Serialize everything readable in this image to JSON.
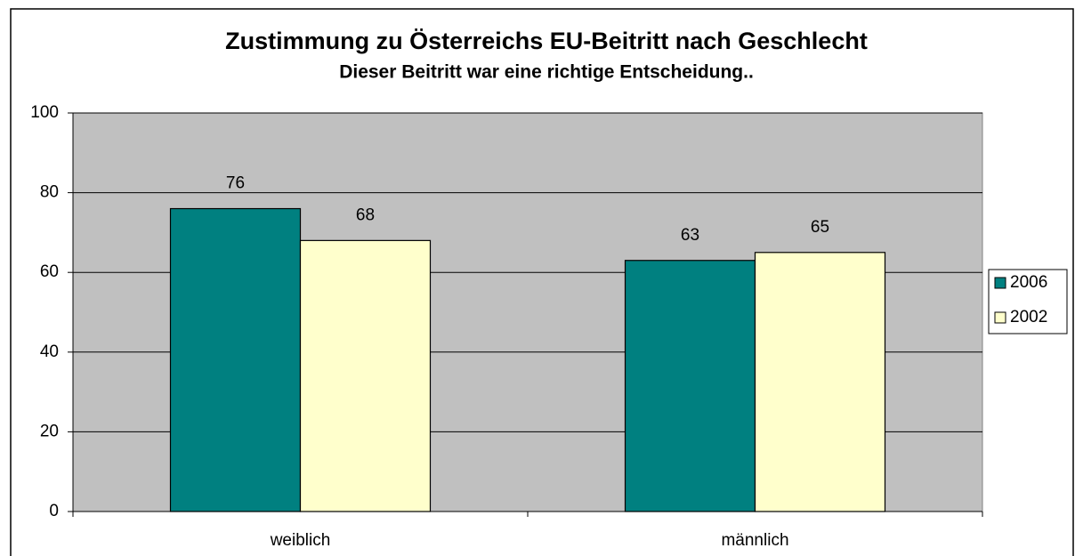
{
  "chart_data": {
    "type": "bar",
    "title": "Zustimmung zu Österreichs EU-Beitritt nach Geschlecht",
    "subtitle": "Dieser Beitritt war eine richtige Entscheidung..",
    "categories": [
      "weiblich",
      "männlich"
    ],
    "series": [
      {
        "name": "2006",
        "color": "#008080",
        "values": [
          76,
          63
        ]
      },
      {
        "name": "2002",
        "color": "#ffffcc",
        "values": [
          68,
          65
        ]
      }
    ],
    "ylim": [
      0,
      100
    ],
    "yticks": [
      0,
      20,
      40,
      60,
      80,
      100
    ],
    "grid": true,
    "legend": "right"
  }
}
